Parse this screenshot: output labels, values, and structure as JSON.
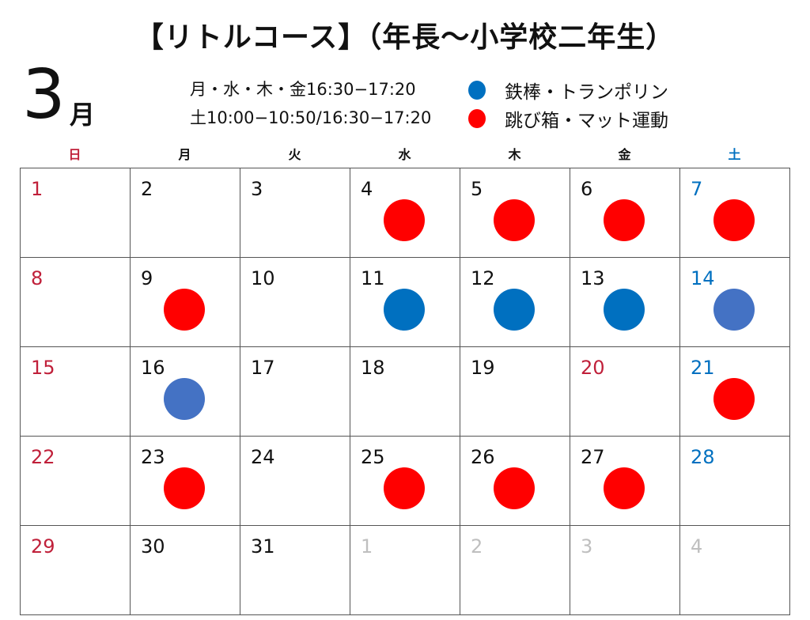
{
  "title": "【リトルコース】（年長～小学校二年生）",
  "month": {
    "number": "3",
    "kanji": "月"
  },
  "schedule": [
    "月・水・木・金16:30−17:20",
    "土10:00−10:50/16:30−17:20"
  ],
  "legend": [
    {
      "label": "鉄棒・トランポリン",
      "color": "#0070c0"
    },
    {
      "label": "跳び箱・マット運動",
      "color": "#ff0000"
    }
  ],
  "colors": {
    "sunday": "#c0203a",
    "saturday": "#0070c0",
    "normal": "#111111",
    "other_month": "#bfbfbf",
    "red_dot": "#ff0000",
    "blue_dot": "#0070c0",
    "light_blue_dot": "#4472c4"
  },
  "weekdays": [
    {
      "label": "日",
      "color": "#c0203a"
    },
    {
      "label": "月",
      "color": "#111111"
    },
    {
      "label": "火",
      "color": "#111111"
    },
    {
      "label": "水",
      "color": "#111111"
    },
    {
      "label": "木",
      "color": "#111111"
    },
    {
      "label": "金",
      "color": "#111111"
    },
    {
      "label": "土",
      "color": "#0070c0"
    }
  ],
  "days": [
    {
      "d": "1",
      "t": "sunday"
    },
    {
      "d": "2"
    },
    {
      "d": "3"
    },
    {
      "d": "4",
      "dot": "red_dot"
    },
    {
      "d": "5",
      "dot": "red_dot"
    },
    {
      "d": "6",
      "dot": "red_dot"
    },
    {
      "d": "7",
      "t": "saturday",
      "dot": "red_dot"
    },
    {
      "d": "8",
      "t": "sunday"
    },
    {
      "d": "9",
      "dot": "red_dot"
    },
    {
      "d": "10"
    },
    {
      "d": "11",
      "dot": "blue_dot"
    },
    {
      "d": "12",
      "dot": "blue_dot"
    },
    {
      "d": "13",
      "dot": "blue_dot"
    },
    {
      "d": "14",
      "t": "saturday",
      "dot": "light_blue_dot"
    },
    {
      "d": "15",
      "t": "sunday"
    },
    {
      "d": "16",
      "dot": "light_blue_dot"
    },
    {
      "d": "17"
    },
    {
      "d": "18"
    },
    {
      "d": "19"
    },
    {
      "d": "20",
      "t": "sunday"
    },
    {
      "d": "21",
      "t": "saturday",
      "dot": "red_dot"
    },
    {
      "d": "22",
      "t": "sunday"
    },
    {
      "d": "23",
      "dot": "red_dot"
    },
    {
      "d": "24"
    },
    {
      "d": "25",
      "dot": "red_dot"
    },
    {
      "d": "26",
      "dot": "red_dot"
    },
    {
      "d": "27",
      "dot": "red_dot"
    },
    {
      "d": "28",
      "t": "saturday"
    },
    {
      "d": "29",
      "t": "sunday"
    },
    {
      "d": "30"
    },
    {
      "d": "31"
    },
    {
      "d": "1",
      "t": "other_month"
    },
    {
      "d": "2",
      "t": "other_month"
    },
    {
      "d": "3",
      "t": "other_month"
    },
    {
      "d": "4",
      "t": "other_month"
    }
  ]
}
